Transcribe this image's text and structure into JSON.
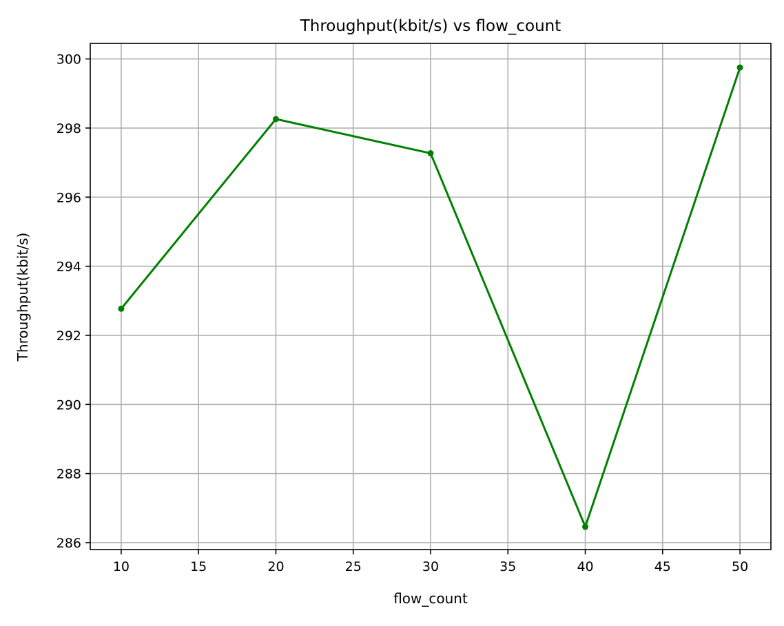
{
  "chart_data": {
    "type": "line",
    "title": "Throughput(kbit/s) vs flow_count",
    "xlabel": "flow_count",
    "ylabel": "Throughput(kbit/s)",
    "grid": true,
    "xlim": [
      8,
      52
    ],
    "ylim": [
      285.8,
      300.45
    ],
    "xticks": [
      10,
      15,
      20,
      25,
      30,
      35,
      40,
      45,
      50
    ],
    "yticks": [
      286,
      288,
      290,
      292,
      294,
      296,
      298,
      300
    ],
    "series": [
      {
        "color": "#008000",
        "marker": "circle",
        "x": [
          10,
          20,
          30,
          40,
          50
        ],
        "y": [
          292.77,
          298.26,
          297.27,
          286.46,
          299.75
        ]
      }
    ]
  }
}
